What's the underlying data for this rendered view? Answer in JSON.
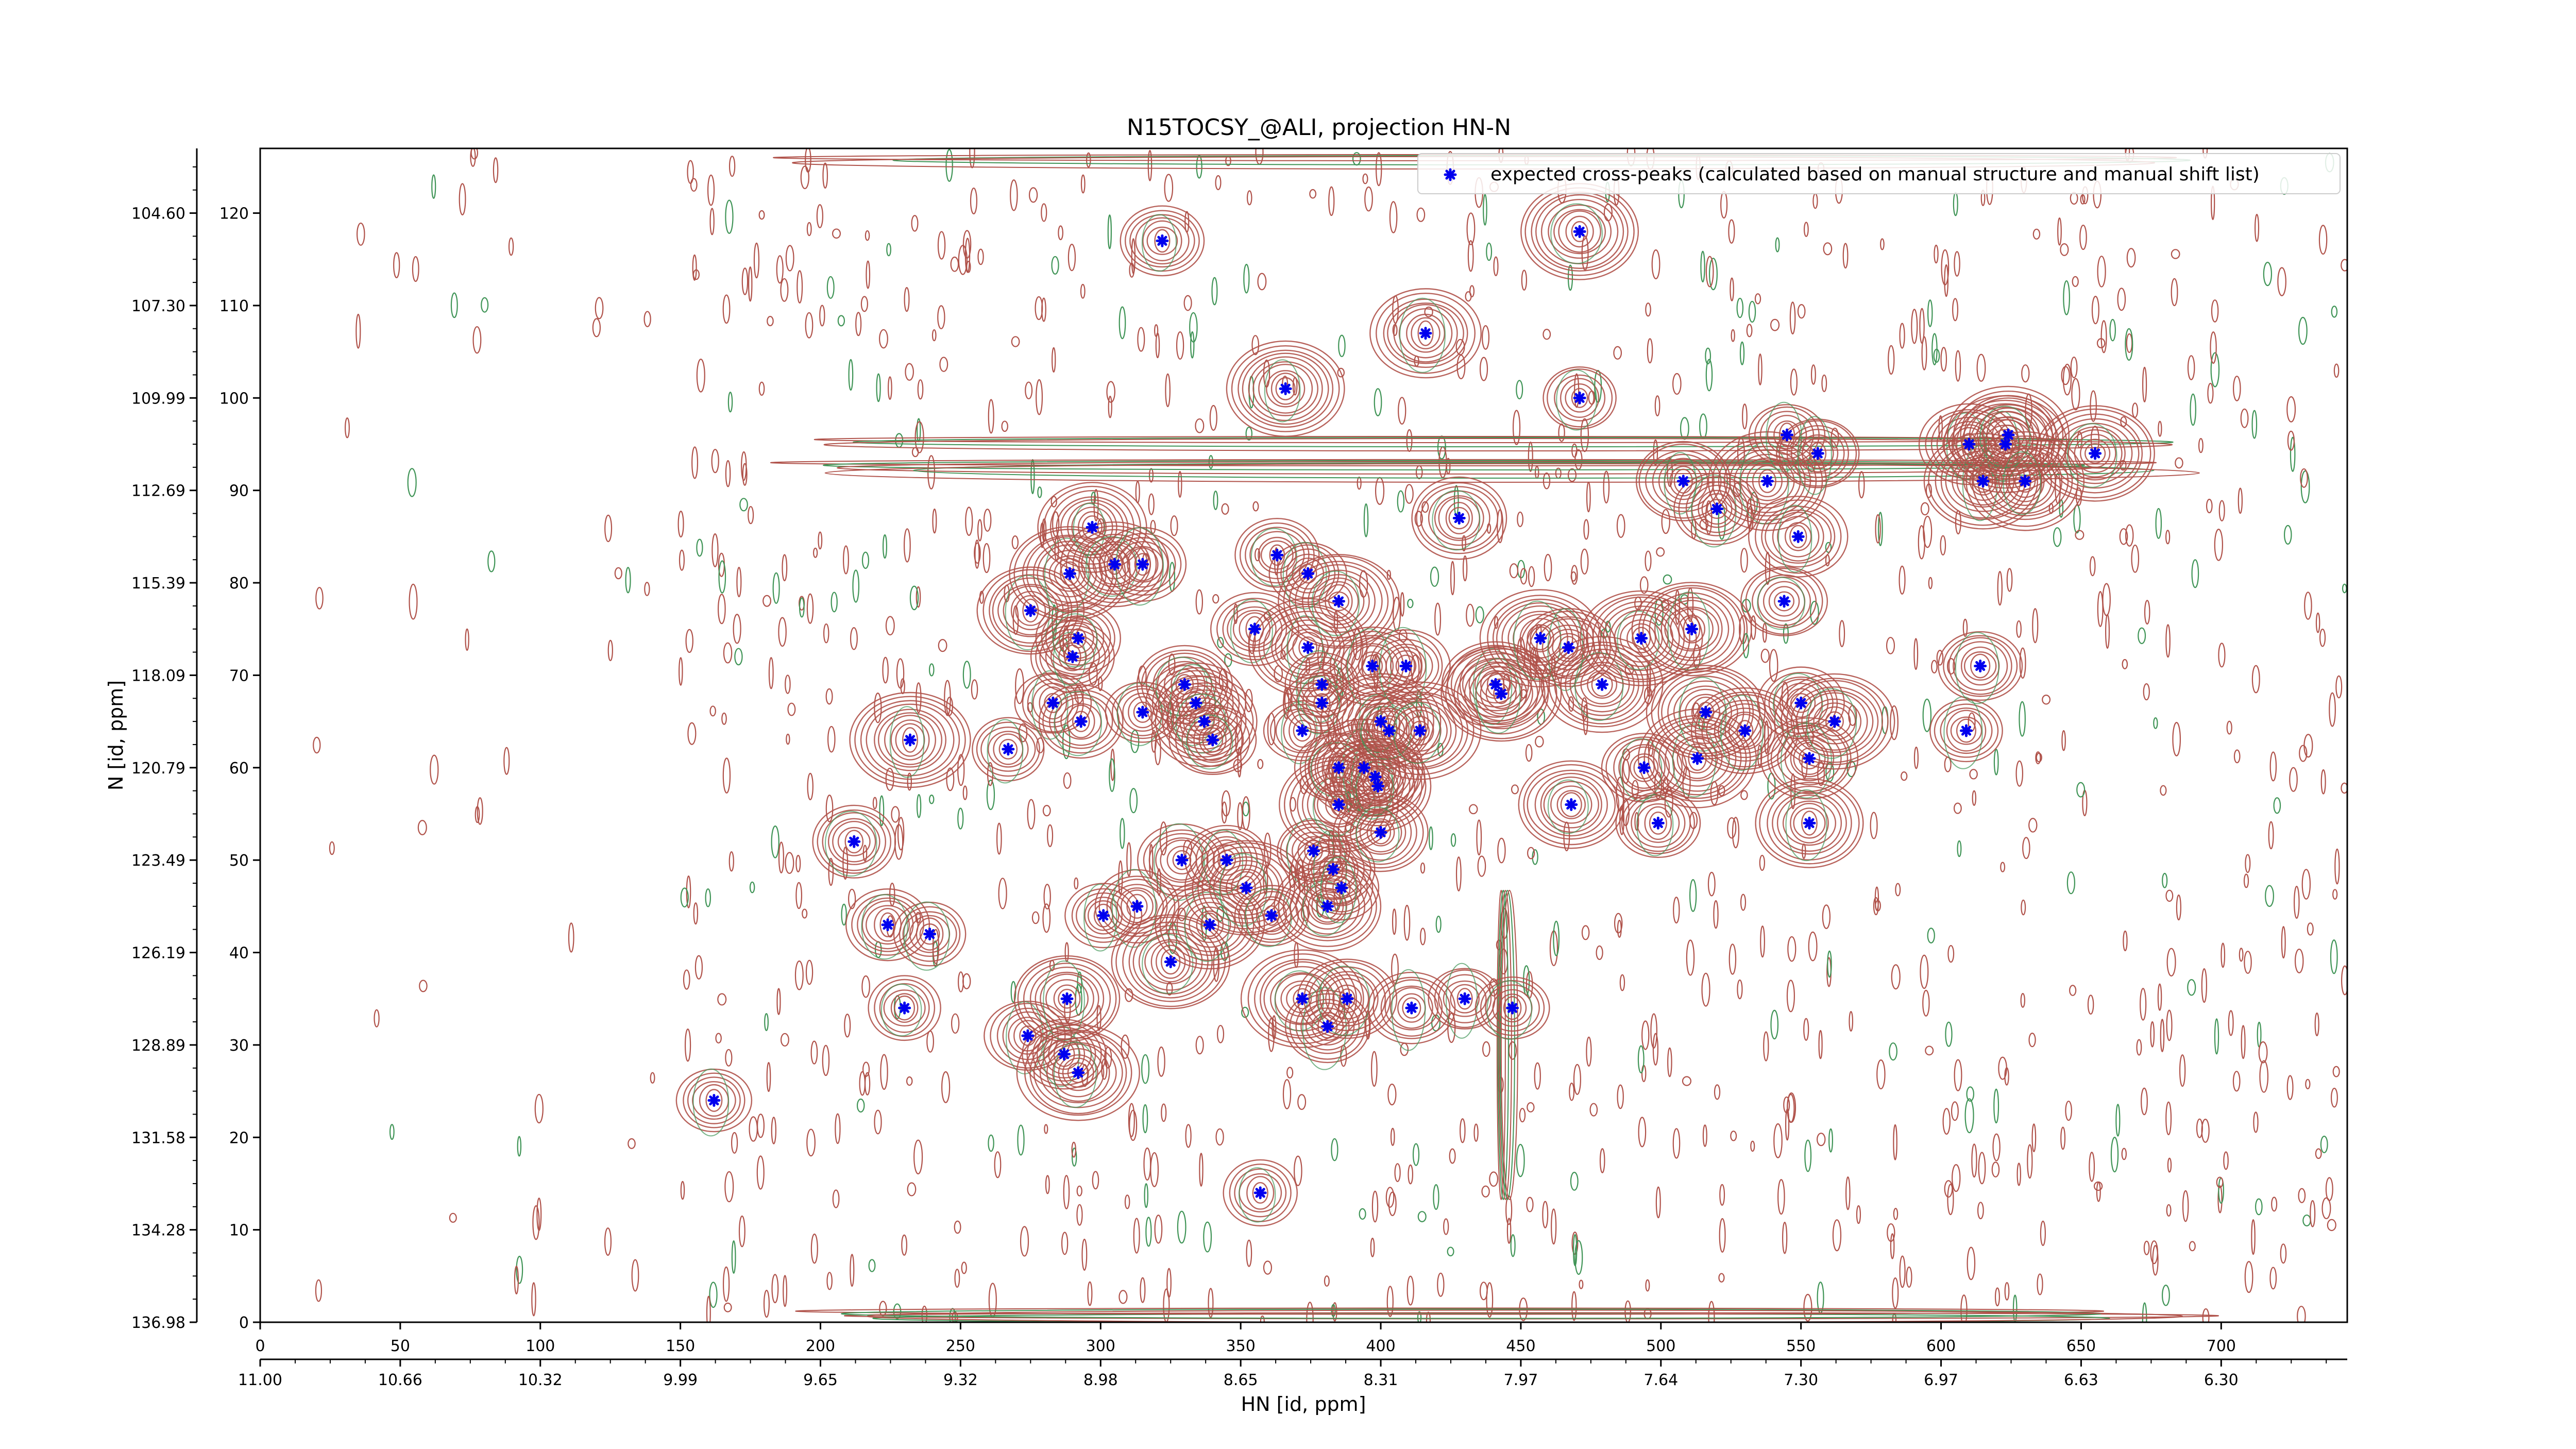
{
  "chart_data": {
    "type": "scatter",
    "title": "N15TOCSY_@ALI, projection HN-N",
    "xlabel": "HN [id, ppm]",
    "ylabel": "N [id, ppm]",
    "xlim": [
      0,
      745
    ],
    "ylim": [
      0,
      127
    ],
    "x_ticks": [
      0,
      50,
      100,
      150,
      200,
      250,
      300,
      350,
      400,
      450,
      500,
      550,
      600,
      650,
      700
    ],
    "y_ticks": [
      0,
      10,
      20,
      30,
      40,
      50,
      60,
      70,
      80,
      90,
      100,
      110,
      120
    ],
    "secondary_x_ticks": [
      "11.00",
      "10.66",
      "10.32",
      "9.99",
      "9.65",
      "9.32",
      "8.98",
      "8.65",
      "8.31",
      "7.97",
      "7.64",
      "7.30",
      "6.97",
      "6.63",
      "6.30"
    ],
    "secondary_y_ticks": [
      "136.98",
      "134.28",
      "131.58",
      "128.89",
      "126.19",
      "123.49",
      "120.79",
      "118.09",
      "115.39",
      "112.69",
      "109.99",
      "107.30",
      "104.60"
    ],
    "grid": false,
    "legend": {
      "position": "top-right",
      "entries": [
        "expected cross-peaks (calculated based on manual structure and manual shift list)"
      ]
    },
    "colors": {
      "peaks": "#0000ee",
      "positive_contours": "#b0524a",
      "negative_contours": "#3f9456"
    },
    "series": [
      {
        "name": "expected cross-peaks (calculated based on manual structure and manual shift list)",
        "points": [
          [
            162,
            24
          ],
          [
            212,
            52
          ],
          [
            224,
            43
          ],
          [
            230,
            34
          ],
          [
            232,
            63
          ],
          [
            239,
            42
          ],
          [
            267,
            62
          ],
          [
            274,
            31
          ],
          [
            275,
            77
          ],
          [
            283,
            67
          ],
          [
            287,
            29
          ],
          [
            288,
            35
          ],
          [
            289,
            81
          ],
          [
            290,
            72
          ],
          [
            292,
            74
          ],
          [
            292,
            27
          ],
          [
            293,
            65
          ],
          [
            297,
            86
          ],
          [
            301,
            44
          ],
          [
            305,
            82
          ],
          [
            313,
            45
          ],
          [
            315,
            66
          ],
          [
            315,
            82
          ],
          [
            322,
            117
          ],
          [
            325,
            39
          ],
          [
            330,
            69
          ],
          [
            329,
            50
          ],
          [
            334,
            67
          ],
          [
            337,
            65
          ],
          [
            339,
            43
          ],
          [
            340,
            63
          ],
          [
            345,
            50
          ],
          [
            352,
            47
          ],
          [
            355,
            75
          ],
          [
            357,
            14
          ],
          [
            361,
            44
          ],
          [
            363,
            83
          ],
          [
            366,
            101
          ],
          [
            372,
            35
          ],
          [
            372,
            64
          ],
          [
            374,
            73
          ],
          [
            374,
            81
          ],
          [
            376,
            51
          ],
          [
            379,
            69
          ],
          [
            379,
            67
          ],
          [
            381,
            32
          ],
          [
            381,
            45
          ],
          [
            383,
            49
          ],
          [
            385,
            56
          ],
          [
            385,
            60
          ],
          [
            385,
            78
          ],
          [
            386,
            47
          ],
          [
            388,
            35
          ],
          [
            394,
            60
          ],
          [
            397,
            71
          ],
          [
            398,
            59
          ],
          [
            399,
            58
          ],
          [
            400,
            65
          ],
          [
            400,
            53
          ],
          [
            403,
            64
          ],
          [
            409,
            71
          ],
          [
            411,
            34
          ],
          [
            414,
            64
          ],
          [
            416,
            107
          ],
          [
            428,
            87
          ],
          [
            430,
            35
          ],
          [
            441,
            69
          ],
          [
            443,
            68
          ],
          [
            447,
            34
          ],
          [
            457,
            74
          ],
          [
            467,
            73
          ],
          [
            468,
            56
          ],
          [
            471,
            118
          ],
          [
            471,
            100
          ],
          [
            479,
            69
          ],
          [
            493,
            74
          ],
          [
            494,
            60
          ],
          [
            499,
            54
          ],
          [
            508,
            91
          ],
          [
            511,
            75
          ],
          [
            513,
            61
          ],
          [
            516,
            66
          ],
          [
            520,
            88
          ],
          [
            530,
            64
          ],
          [
            538,
            91
          ],
          [
            544,
            78
          ],
          [
            545,
            96
          ],
          [
            549,
            85
          ],
          [
            550,
            67
          ],
          [
            553,
            61
          ],
          [
            553,
            54
          ],
          [
            556,
            94
          ],
          [
            562,
            65
          ],
          [
            609,
            64
          ],
          [
            610,
            95
          ],
          [
            614,
            71
          ],
          [
            615,
            91
          ],
          [
            623,
            95
          ],
          [
            624,
            96
          ],
          [
            630,
            91
          ],
          [
            655,
            94
          ]
        ]
      }
    ]
  }
}
